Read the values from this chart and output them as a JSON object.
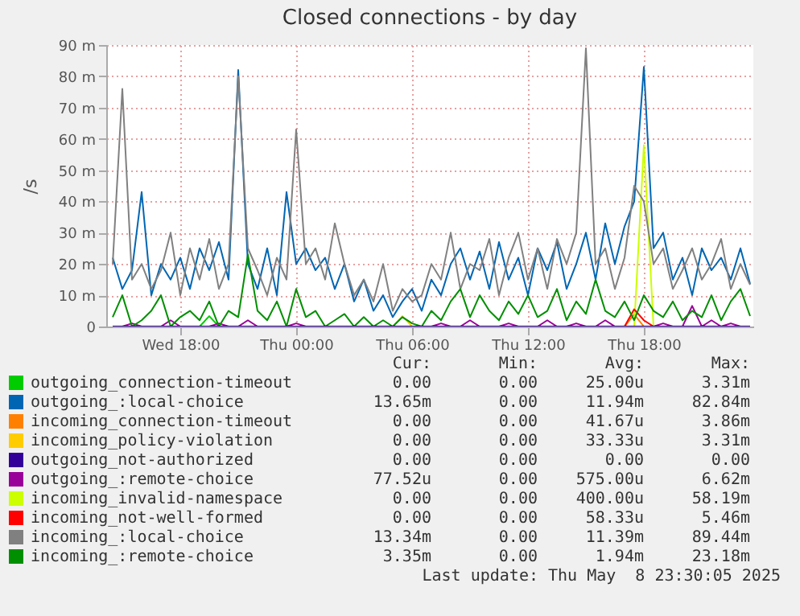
{
  "chart_data": {
    "type": "line",
    "title": "Closed connections - by day",
    "ylabel": "/s",
    "x": [
      "2025-05-07T14:30",
      "2025-05-07T15:00",
      "2025-05-07T15:30",
      "2025-05-07T16:00",
      "2025-05-07T16:30",
      "2025-05-07T17:00",
      "2025-05-07T17:30",
      "2025-05-07T18:00",
      "2025-05-07T18:30",
      "2025-05-07T19:00",
      "2025-05-07T19:30",
      "2025-05-07T20:00",
      "2025-05-07T20:30",
      "2025-05-07T21:00",
      "2025-05-07T21:30",
      "2025-05-07T22:00",
      "2025-05-07T22:30",
      "2025-05-07T23:00",
      "2025-05-07T23:30",
      "2025-05-08T00:00",
      "2025-05-08T00:30",
      "2025-05-08T01:00",
      "2025-05-08T01:30",
      "2025-05-08T02:00",
      "2025-05-08T02:30",
      "2025-05-08T03:00",
      "2025-05-08T03:30",
      "2025-05-08T04:00",
      "2025-05-08T04:30",
      "2025-05-08T05:00",
      "2025-05-08T05:30",
      "2025-05-08T06:00",
      "2025-05-08T06:30",
      "2025-05-08T07:00",
      "2025-05-08T07:30",
      "2025-05-08T08:00",
      "2025-05-08T08:30",
      "2025-05-08T09:00",
      "2025-05-08T09:30",
      "2025-05-08T10:00",
      "2025-05-08T10:30",
      "2025-05-08T11:00",
      "2025-05-08T11:30",
      "2025-05-08T12:00",
      "2025-05-08T12:30",
      "2025-05-08T13:00",
      "2025-05-08T13:30",
      "2025-05-08T14:00",
      "2025-05-08T14:30",
      "2025-05-08T15:00",
      "2025-05-08T15:30",
      "2025-05-08T16:00",
      "2025-05-08T16:30",
      "2025-05-08T17:00",
      "2025-05-08T17:30",
      "2025-05-08T18:00",
      "2025-05-08T18:30",
      "2025-05-08T19:00",
      "2025-05-08T19:30",
      "2025-05-08T20:00",
      "2025-05-08T20:30",
      "2025-05-08T21:00",
      "2025-05-08T21:30",
      "2025-05-08T22:00",
      "2025-05-08T22:30",
      "2025-05-08T23:00",
      "2025-05-08T23:30"
    ],
    "xlim": [
      "2025-05-07T14:10",
      "2025-05-08T23:40"
    ],
    "xticks": [
      {
        "value": "2025-05-07T18:00",
        "label": "Wed 18:00"
      },
      {
        "value": "2025-05-08T00:00",
        "label": "Thu 00:00"
      },
      {
        "value": "2025-05-08T06:00",
        "label": "Thu 06:00"
      },
      {
        "value": "2025-05-08T12:00",
        "label": "Thu 12:00"
      },
      {
        "value": "2025-05-08T18:00",
        "label": "Thu 18:00"
      }
    ],
    "ylim": [
      0,
      90
    ],
    "yticks": [
      0,
      {
        "value": 10,
        "label": "10 m"
      },
      {
        "value": 20,
        "label": "20 m"
      },
      {
        "value": 30,
        "label": "30 m"
      },
      {
        "value": 40,
        "label": "40 m"
      },
      {
        "value": 50,
        "label": "50 m"
      },
      {
        "value": 60,
        "label": "60 m"
      },
      {
        "value": 70,
        "label": "70 m"
      },
      {
        "value": 80,
        "label": "80 m"
      },
      {
        "value": 90,
        "label": "90 m"
      }
    ],
    "grid": true,
    "legend": "bottom",
    "series": [
      {
        "name": "outgoing_connection-timeout",
        "color": "#00cc00",
        "values": [
          null,
          null,
          null,
          null,
          null,
          null,
          null,
          null,
          null,
          0,
          3.3,
          0,
          null,
          null,
          null,
          null,
          null,
          null,
          null,
          null,
          null,
          null,
          null,
          null,
          null,
          null,
          null,
          null,
          null,
          null,
          null,
          null,
          null,
          null,
          null,
          null,
          null,
          null,
          null,
          null,
          null,
          null,
          null,
          null,
          null,
          null,
          null,
          null,
          null,
          null,
          null,
          null,
          null,
          null,
          null,
          null,
          null,
          null,
          null,
          null,
          null,
          null,
          null,
          null,
          null,
          null,
          null
        ]
      },
      {
        "name": "outgoing_:local-choice",
        "color": "#0066b3",
        "values": [
          22,
          12,
          18,
          43,
          10,
          20,
          15,
          22,
          12,
          25,
          18,
          27,
          15,
          82,
          20,
          12,
          25,
          10,
          43,
          20,
          25,
          18,
          22,
          12,
          20,
          8,
          15,
          5,
          10,
          3,
          8,
          12,
          5,
          15,
          10,
          20,
          25,
          15,
          24,
          12,
          27,
          15,
          22,
          10,
          25,
          18,
          27,
          12,
          20,
          30,
          15,
          33,
          20,
          32,
          40,
          83,
          25,
          30,
          15,
          22,
          10,
          25,
          18,
          22,
          15,
          25,
          13.65
        ]
      },
      {
        "name": "incoming_connection-timeout",
        "color": "#ff8000",
        "values": [
          null,
          null,
          null,
          null,
          null,
          null,
          null,
          null,
          null,
          null,
          null,
          null,
          null,
          null,
          null,
          null,
          null,
          null,
          null,
          null,
          null,
          null,
          null,
          null,
          null,
          null,
          null,
          null,
          null,
          null,
          null,
          null,
          null,
          null,
          null,
          null,
          null,
          null,
          null,
          null,
          null,
          null,
          null,
          null,
          null,
          null,
          null,
          null,
          null,
          null,
          null,
          null,
          null,
          0,
          3.9,
          0,
          null,
          null,
          null,
          null,
          null,
          null,
          null,
          null,
          null,
          null,
          null
        ]
      },
      {
        "name": "incoming_policy-violation",
        "color": "#ffcc00",
        "values": [
          null,
          null,
          null,
          null,
          null,
          null,
          null,
          null,
          null,
          null,
          null,
          null,
          null,
          null,
          null,
          null,
          null,
          null,
          null,
          null,
          null,
          null,
          null,
          null,
          null,
          null,
          null,
          null,
          null,
          0,
          3.3,
          0,
          null,
          null,
          null,
          null,
          null,
          null,
          null,
          null,
          null,
          null,
          null,
          null,
          null,
          null,
          null,
          null,
          null,
          null,
          null,
          null,
          null,
          null,
          null,
          null,
          null,
          null,
          null,
          null,
          null,
          null,
          null,
          null,
          null,
          null,
          null
        ]
      },
      {
        "name": "outgoing_not-authorized",
        "color": "#330099",
        "values": [
          0,
          0,
          0,
          0,
          0,
          0,
          0,
          0,
          0,
          0,
          0,
          0,
          0,
          0,
          0,
          0,
          0,
          0,
          0,
          0,
          0,
          0,
          0,
          0,
          0,
          0,
          0,
          0,
          0,
          0,
          0,
          0,
          0,
          0,
          0,
          0,
          0,
          0,
          0,
          0,
          0,
          0,
          0,
          0,
          0,
          0,
          0,
          0,
          0,
          0,
          0,
          0,
          0,
          0,
          0,
          0,
          0,
          0,
          0,
          0,
          0,
          0,
          0,
          0,
          0,
          0,
          0
        ]
      },
      {
        "name": "outgoing_:remote-choice",
        "color": "#990099",
        "values": [
          null,
          0,
          1,
          0,
          null,
          0,
          2,
          0,
          null,
          null,
          0,
          1,
          0,
          0,
          2,
          0,
          null,
          null,
          0,
          1,
          0,
          null,
          null,
          null,
          null,
          null,
          null,
          null,
          null,
          null,
          null,
          null,
          null,
          0,
          1,
          0,
          0,
          2,
          0,
          null,
          0,
          1,
          0,
          null,
          0,
          2,
          0,
          0,
          1,
          0,
          0,
          2,
          0,
          null,
          null,
          null,
          0,
          1,
          0,
          0,
          6.6,
          0,
          2,
          0,
          1,
          0,
          null
        ]
      },
      {
        "name": "incoming_invalid-namespace",
        "color": "#ccff00",
        "values": [
          null,
          null,
          null,
          null,
          null,
          null,
          null,
          null,
          null,
          null,
          null,
          null,
          null,
          null,
          null,
          null,
          null,
          null,
          null,
          null,
          null,
          null,
          null,
          null,
          null,
          null,
          null,
          null,
          null,
          null,
          null,
          null,
          null,
          null,
          null,
          null,
          null,
          null,
          null,
          null,
          null,
          null,
          null,
          null,
          null,
          null,
          null,
          null,
          null,
          null,
          null,
          null,
          null,
          null,
          0,
          58,
          0,
          null,
          null,
          null,
          null,
          null,
          null,
          null,
          null,
          null,
          null
        ]
      },
      {
        "name": "incoming_not-well-formed",
        "color": "#ff0000",
        "values": [
          null,
          null,
          null,
          null,
          null,
          null,
          null,
          null,
          null,
          null,
          null,
          null,
          null,
          null,
          null,
          null,
          null,
          null,
          null,
          null,
          null,
          null,
          null,
          null,
          null,
          null,
          null,
          null,
          null,
          null,
          null,
          null,
          null,
          null,
          null,
          null,
          null,
          null,
          null,
          null,
          null,
          null,
          null,
          null,
          null,
          null,
          null,
          null,
          null,
          null,
          null,
          null,
          null,
          0,
          5.5,
          2,
          0,
          null,
          null,
          null,
          null,
          null,
          null,
          null,
          null,
          null,
          null
        ]
      },
      {
        "name": "incoming_:local-choice",
        "color": "#808080",
        "values": [
          20,
          76,
          15,
          20,
          12,
          18,
          30,
          10,
          25,
          15,
          28,
          12,
          20,
          80,
          25,
          18,
          10,
          22,
          15,
          63,
          20,
          25,
          15,
          33,
          20,
          10,
          15,
          8,
          20,
          5,
          12,
          8,
          10,
          20,
          15,
          30,
          12,
          20,
          18,
          28,
          10,
          22,
          30,
          15,
          25,
          12,
          28,
          20,
          30,
          89,
          20,
          25,
          12,
          22,
          45,
          40,
          20,
          25,
          12,
          18,
          25,
          15,
          20,
          28,
          12,
          20,
          13.34
        ]
      },
      {
        "name": "incoming_:remote-choice",
        "color": "#008f00",
        "values": [
          3,
          10,
          0,
          2,
          5,
          10,
          0,
          3,
          5,
          2,
          8,
          0,
          5,
          3,
          23,
          5,
          2,
          8,
          0,
          12,
          3,
          5,
          0,
          2,
          4,
          0,
          3,
          0,
          2,
          0,
          3,
          1,
          0,
          5,
          2,
          8,
          12,
          3,
          10,
          5,
          2,
          8,
          4,
          10,
          3,
          5,
          12,
          2,
          8,
          4,
          15,
          5,
          3,
          8,
          2,
          10,
          5,
          3,
          8,
          2,
          5,
          3,
          10,
          2,
          8,
          12,
          3.35
        ]
      }
    ],
    "annotations": [
      "Cur: Min: Avg: Max:",
      "0.00 0.00 25.00u 3.31m",
      "13.65m 0.00 11.94m 82.84m",
      "0.00 0.00 41.67u 3.86m",
      "0.00 0.00 33.33u 3.31m",
      "0.00 0.00 0.00 0.00",
      "77.52u 0.00 575.00u 6.62m",
      "0.00 0.00 400.00u 58.19m",
      "0.00 0.00 58.33u 5.46m",
      "13.34m 0.00 11.39m 89.44m",
      "3.35m 0.00 1.94m 23.18m",
      "Last update: Thu May  8 23:30:05 2025"
    ]
  }
}
